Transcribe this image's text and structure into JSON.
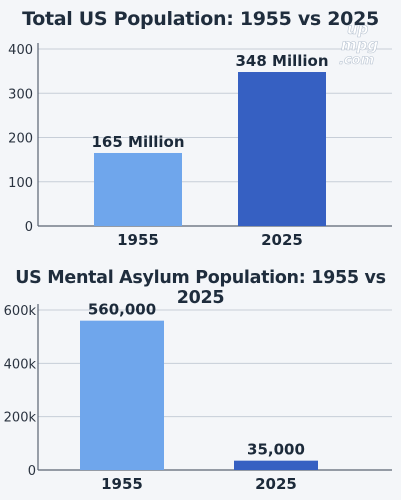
{
  "watermark_text": "upmpg.com",
  "colors": {
    "bar_light": "#6fa6ec",
    "bar_dark": "#3660c2",
    "text": "#1c2a3a"
  },
  "chart_data": [
    {
      "type": "bar",
      "title": "Total US Population: 1955 vs 2025",
      "categories": [
        "1955",
        "2025"
      ],
      "values": [
        165,
        348
      ],
      "data_labels": [
        "165 Million",
        "348 Million"
      ],
      "ylim": [
        0,
        400
      ],
      "yticks": [
        0,
        100,
        200,
        300,
        400
      ],
      "ytick_labels": [
        "0",
        "100",
        "200",
        "300",
        "400"
      ],
      "grid": true,
      "xlabel": "",
      "ylabel": ""
    },
    {
      "type": "bar",
      "title": "US Mental Asylum Population: 1955 vs 2025",
      "categories": [
        "1955",
        "2025"
      ],
      "values": [
        560000,
        35000
      ],
      "data_labels": [
        "560,000",
        "35,000"
      ],
      "ylim": [
        0,
        600000
      ],
      "yticks": [
        0,
        200000,
        400000,
        600000
      ],
      "ytick_labels": [
        "0",
        "200k",
        "400k",
        "600k"
      ],
      "grid": true,
      "xlabel": "",
      "ylabel": ""
    }
  ]
}
